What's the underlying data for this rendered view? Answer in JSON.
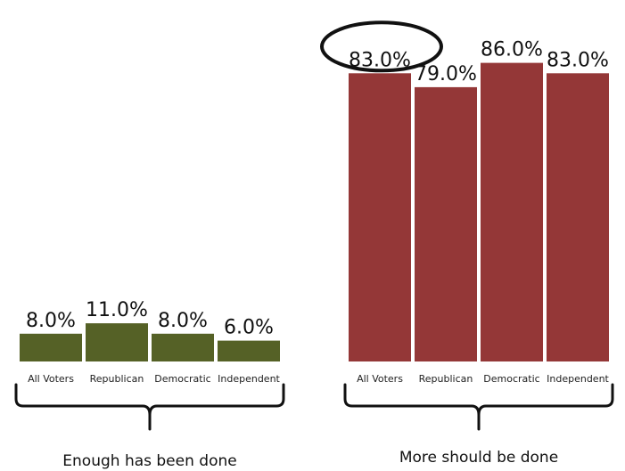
{
  "chart_data": {
    "type": "bar",
    "groups": [
      {
        "title": "Enough has been done",
        "color": "#556126",
        "categories": [
          "All Voters",
          "Republican",
          "Democratic",
          "Independent"
        ],
        "values": [
          8.0,
          11.0,
          8.0,
          6.0
        ],
        "value_labels": [
          "8.0%",
          "11.0%",
          "8.0%",
          "6.0%"
        ]
      },
      {
        "title": "More should be done",
        "color": "#943737",
        "categories": [
          "All Voters",
          "Republican",
          "Democratic",
          "Independent"
        ],
        "values": [
          83.0,
          79.0,
          86.0,
          83.0
        ],
        "value_labels": [
          "83.0%",
          "79.0%",
          "86.0%",
          "83.0%"
        ]
      }
    ],
    "highlighted": {
      "group": 1,
      "index": 0
    },
    "ylim": [
      0,
      100
    ]
  }
}
